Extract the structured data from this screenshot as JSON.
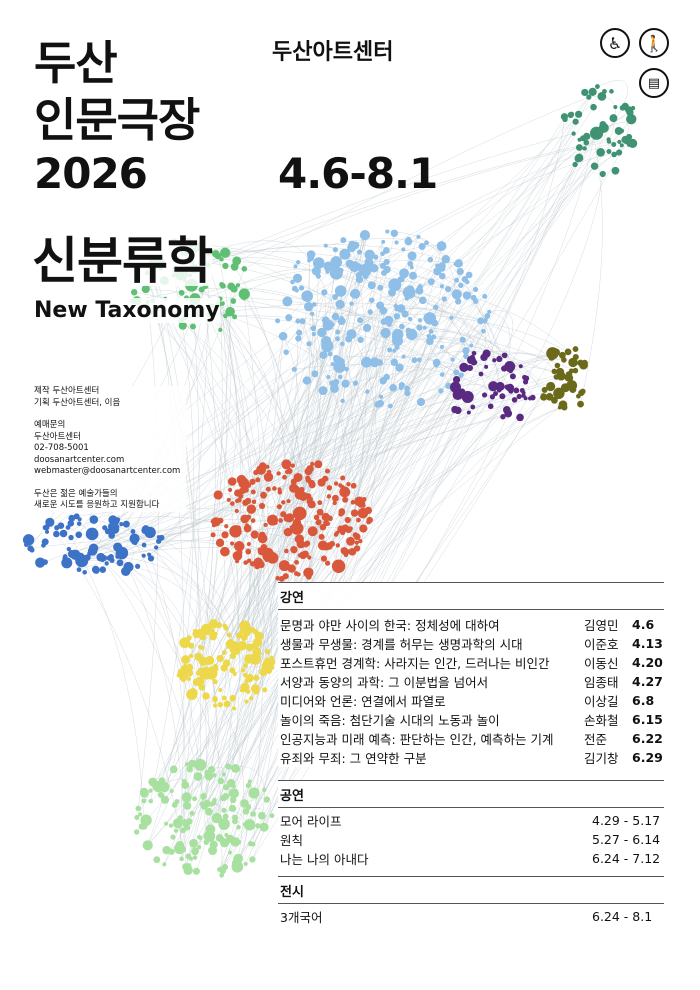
{
  "header": {
    "title_line1": "두산",
    "title_line2": "인문극장",
    "year": "2026",
    "organizer": "두산아트센터",
    "period": "4.6-8.1",
    "theme_ko": "신분류학",
    "theme_en": "New Taxonomy"
  },
  "icons": [
    "wheelchair-accessibility-icon",
    "visual-impairment-icon",
    "captions-audio-description-icon"
  ],
  "info": {
    "production": "제작 두산아트센터",
    "planning": "기획 두산아트센터, 이음",
    "inquiry_label": "예매문의",
    "inquiry_org": "두산아트센터",
    "phone": "02-708-5001",
    "website": "doosanartcenter.com",
    "email": "webmaster@doosanartcenter.com",
    "support_line1": "두산은 젊은 예술가들의",
    "support_line2": "새로운 시도를 응원하고 지원합니다"
  },
  "lectures": {
    "label": "강연",
    "items": [
      {
        "title": "문명과 야만 사이의 한국: 정체성에 대하여",
        "speaker": "김영민",
        "date": "4.6"
      },
      {
        "title": "생물과 무생물: 경계를 허무는 생명과학의 시대",
        "speaker": "이준호",
        "date": "4.13"
      },
      {
        "title": "포스트휴먼 경계학: 사라지는 인간, 드러나는 비인간",
        "speaker": "이동신",
        "date": "4.20"
      },
      {
        "title": "서양과 동양의 과학: 그 이분법을 넘어서",
        "speaker": "임종태",
        "date": "4.27"
      },
      {
        "title": "미디어와 언론: 연결에서 파열로",
        "speaker": "이상길",
        "date": "6.8"
      },
      {
        "title": "놀이의 죽음: 첨단기술 시대의 노동과 놀이",
        "speaker": "손화철",
        "date": "6.15"
      },
      {
        "title": "인공지능과 미래 예측: 판단하는 인간, 예측하는 기계",
        "speaker": "전준",
        "date": "6.22"
      },
      {
        "title": "유죄와 무죄: 그 연약한 구분",
        "speaker": "김기창",
        "date": "6.29"
      }
    ]
  },
  "performances": {
    "label": "공연",
    "items": [
      {
        "title": "모어 라이프",
        "period": "4.29 - 5.17"
      },
      {
        "title": "원칙",
        "period": "5.27 - 6.14"
      },
      {
        "title": "나는 나의 아내다",
        "period": "6.24 - 7.12"
      }
    ]
  },
  "exhibition": {
    "label": "전시",
    "items": [
      {
        "title": "3개국어",
        "period": "6.24 - 8.1"
      }
    ]
  },
  "cluster_colors": [
    "#8fbfe6",
    "#5fbf73",
    "#3f9272",
    "#5a2a82",
    "#6b6a1a",
    "#d9573a",
    "#3d73c6",
    "#ecd84a",
    "#a8e0a0"
  ]
}
